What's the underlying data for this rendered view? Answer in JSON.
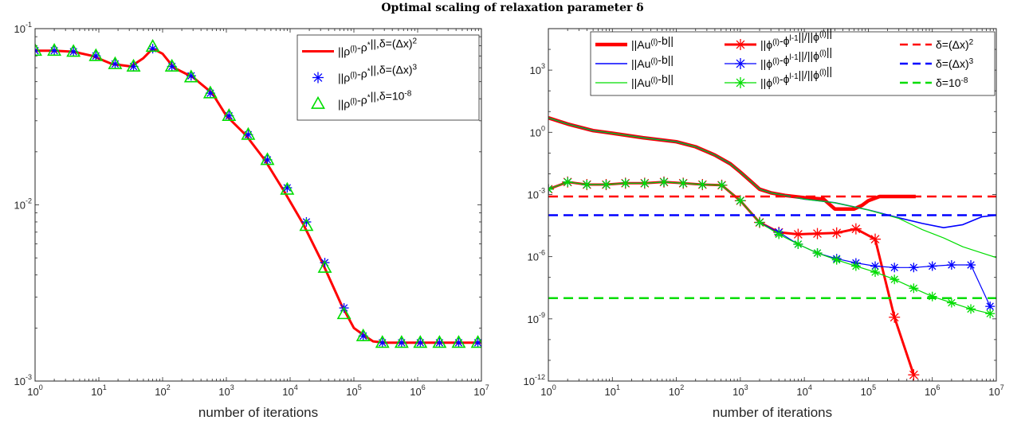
{
  "figure": {
    "title": "Optimal scaling of relaxation parameter δ"
  },
  "colors": {
    "red": "#ff0000",
    "blue": "#0000ff",
    "green": "#00dd00",
    "axis": "#262626"
  },
  "chart_data": [
    {
      "type": "line",
      "xscale": "log",
      "yscale": "log",
      "xlim": [
        1,
        10000000
      ],
      "ylim": [
        0.001,
        0.1
      ],
      "xlabel": "number of iterations",
      "ylabel": "",
      "xticks": [
        {
          "base": "10",
          "exp": "0"
        },
        {
          "base": "10",
          "exp": "1"
        },
        {
          "base": "10",
          "exp": "2"
        },
        {
          "base": "10",
          "exp": "3"
        },
        {
          "base": "10",
          "exp": "4"
        },
        {
          "base": "10",
          "exp": "5"
        },
        {
          "base": "10",
          "exp": "6"
        },
        {
          "base": "10",
          "exp": "7"
        }
      ],
      "yticks": [
        {
          "base": "10",
          "exp": "-3"
        },
        {
          "base": "10",
          "exp": "-2"
        },
        {
          "base": "10",
          "exp": "-1"
        }
      ],
      "legend_position": "top-right",
      "series": [
        {
          "legend_main": "||ρ",
          "legend_sup1": "(l)",
          "legend_mid": "-ρ",
          "legend_sup2": "*",
          "legend_tail": "||,δ=(Δx)",
          "legend_sup3": "2",
          "color": "red",
          "marker": "none",
          "line": "solid",
          "x": [
            1,
            2,
            4,
            8,
            16,
            32,
            50,
            70,
            100,
            150,
            300,
            600,
            1000,
            2000,
            4000,
            8000,
            16000,
            32000,
            64000,
            100000,
            150000,
            200000,
            300000,
            1000000,
            10000000
          ],
          "y": [
            0.075,
            0.075,
            0.074,
            0.07,
            0.063,
            0.061,
            0.068,
            0.077,
            0.072,
            0.06,
            0.053,
            0.043,
            0.032,
            0.025,
            0.018,
            0.012,
            0.0078,
            0.0047,
            0.0027,
            0.002,
            0.0018,
            0.00168,
            0.00165,
            0.00165,
            0.00165
          ]
        },
        {
          "legend_main": "||ρ",
          "legend_sup1": "(l)",
          "legend_mid": "-ρ",
          "legend_sup2": "*",
          "legend_tail": "||,δ=(Δx)",
          "legend_sup3": "3",
          "color": "blue",
          "marker": "asterisk",
          "line": "none",
          "x": [
            1,
            2,
            4,
            9,
            18,
            35,
            70,
            140,
            280,
            560,
            1100,
            2200,
            4400,
            9000,
            18000,
            35000,
            70000,
            140000,
            280000,
            560000,
            1100000,
            2200000,
            4400000,
            8800000
          ],
          "y": [
            0.075,
            0.075,
            0.074,
            0.07,
            0.063,
            0.061,
            0.077,
            0.061,
            0.054,
            0.043,
            0.032,
            0.025,
            0.018,
            0.0125,
            0.008,
            0.0047,
            0.0026,
            0.0018,
            0.00165,
            0.00165,
            0.00165,
            0.00165,
            0.00165,
            0.00165
          ]
        },
        {
          "legend_main": "||ρ",
          "legend_sup1": "(l)",
          "legend_mid": "-ρ",
          "legend_sup2": "*",
          "legend_tail": "||,δ=10",
          "legend_sup3": "-8",
          "color": "green",
          "marker": "triangle",
          "line": "none",
          "x": [
            1,
            2,
            4,
            9,
            18,
            35,
            70,
            140,
            280,
            560,
            1100,
            2200,
            4400,
            9000,
            18000,
            35000,
            70000,
            140000,
            280000,
            560000,
            1100000,
            2200000,
            4400000,
            8800000
          ],
          "y": [
            0.075,
            0.075,
            0.074,
            0.07,
            0.063,
            0.061,
            0.079,
            0.061,
            0.053,
            0.043,
            0.032,
            0.025,
            0.018,
            0.0122,
            0.0076,
            0.0044,
            0.0024,
            0.0018,
            0.00165,
            0.00165,
            0.00165,
            0.00165,
            0.00165,
            0.00165
          ]
        }
      ]
    },
    {
      "type": "line",
      "xscale": "log",
      "yscale": "log",
      "xlim": [
        1,
        10000000
      ],
      "ylim": [
        1e-12,
        100000
      ],
      "xlabel": "number of iterations",
      "ylabel": "",
      "xticks": [
        {
          "base": "10",
          "exp": "0"
        },
        {
          "base": "10",
          "exp": "1"
        },
        {
          "base": "10",
          "exp": "2"
        },
        {
          "base": "10",
          "exp": "3"
        },
        {
          "base": "10",
          "exp": "4"
        },
        {
          "base": "10",
          "exp": "5"
        },
        {
          "base": "10",
          "exp": "6"
        },
        {
          "base": "10",
          "exp": "7"
        }
      ],
      "yticks": [
        {
          "base": "10",
          "exp": "-12"
        },
        {
          "base": "10",
          "exp": "-9"
        },
        {
          "base": "10",
          "exp": "-6"
        },
        {
          "base": "10",
          "exp": "-3"
        },
        {
          "base": "10",
          "exp": "0"
        },
        {
          "base": "10",
          "exp": "3"
        }
      ],
      "legend_position": "top",
      "series": [
        {
          "legend_main": "||Au",
          "legend_sup1": "(l)",
          "legend_tail": "-b||",
          "color": "red",
          "marker": "none",
          "line": "solid",
          "width": 4.5,
          "x": [
            1,
            2,
            5,
            10,
            30,
            100,
            200,
            400,
            700,
            1000,
            1500,
            2000,
            3000,
            5000,
            10000,
            20000,
            30000,
            60000,
            80000,
            100000,
            150000,
            300000,
            550000
          ],
          "y": [
            5,
            2.5,
            1.2,
            0.9,
            0.55,
            0.35,
            0.2,
            0.08,
            0.03,
            0.012,
            0.004,
            0.0018,
            0.0012,
            0.0009,
            0.0007,
            0.0006,
            0.0002,
            0.0002,
            0.0003,
            0.0005,
            0.0008,
            0.0008,
            0.0008
          ]
        },
        {
          "legend_main": "||Au",
          "legend_sup1": "(l)",
          "legend_tail": "-b||",
          "color": "blue",
          "marker": "none",
          "line": "solid",
          "width": 1.6,
          "x": [
            1,
            2,
            5,
            10,
            30,
            100,
            200,
            400,
            700,
            1000,
            1500,
            2000,
            3000,
            5000,
            10000,
            30000,
            100000,
            300000,
            700000,
            1500000,
            3000000,
            6000000,
            10000000
          ],
          "y": [
            5,
            2.5,
            1.2,
            0.9,
            0.55,
            0.35,
            0.2,
            0.08,
            0.03,
            0.012,
            0.004,
            0.0018,
            0.0012,
            0.0009,
            0.0006,
            0.0004,
            0.00018,
            7.5e-05,
            4e-05,
            2.5e-05,
            3.5e-05,
            8.5e-05,
            0.0001
          ]
        },
        {
          "legend_main": "||Au",
          "legend_sup1": "(l)",
          "legend_tail": "-b||",
          "color": "green",
          "marker": "none",
          "line": "solid",
          "width": 1.2,
          "x": [
            1,
            2,
            5,
            10,
            30,
            100,
            200,
            400,
            700,
            1000,
            1500,
            2000,
            3000,
            5000,
            10000,
            30000,
            100000,
            300000,
            700000,
            1500000,
            3000000,
            6000000,
            10000000
          ],
          "y": [
            5,
            2.5,
            1.2,
            0.9,
            0.55,
            0.35,
            0.2,
            0.08,
            0.03,
            0.012,
            0.004,
            0.0018,
            0.0012,
            0.0009,
            0.0006,
            0.0004,
            0.00018,
            7e-05,
            2e-05,
            8e-06,
            3e-06,
            1.5e-06,
            9e-07
          ]
        },
        {
          "legend_main": "||ϕ",
          "legend_sup1": "(l)",
          "legend_mid": "-ϕ",
          "legend_sup2": "l-1",
          "legend_tail": "||/||ϕ",
          "legend_sup3": "(l)",
          "legend_end": "||",
          "color": "red",
          "marker": "asterisk",
          "line": "solid",
          "width": 3,
          "x": [
            1,
            2,
            4,
            8,
            16,
            32,
            64,
            128,
            256,
            512,
            1000,
            2000,
            4000,
            8000,
            16000,
            32000,
            64000,
            128000,
            256000,
            512000
          ],
          "y": [
            0.0018,
            0.004,
            0.003,
            0.003,
            0.0035,
            0.0035,
            0.004,
            0.0035,
            0.003,
            0.0028,
            0.0005,
            4.5e-05,
            1.5e-05,
            1.2e-05,
            1.3e-05,
            1.4e-05,
            2.2e-05,
            7e-06,
            1.2e-09,
            2e-12
          ]
        },
        {
          "legend_main": "||ϕ",
          "legend_sup1": "(l)",
          "legend_mid": "-ϕ",
          "legend_sup2": "l-1",
          "legend_tail": "||/||ϕ",
          "legend_sup3": "(l)",
          "legend_end": "||",
          "color": "blue",
          "marker": "asterisk",
          "line": "solid",
          "width": 1.2,
          "x": [
            1,
            2,
            4,
            8,
            16,
            32,
            64,
            128,
            256,
            512,
            1000,
            2000,
            4000,
            8000,
            16000,
            32000,
            64000,
            128000,
            256000,
            512000,
            1000000,
            2000000,
            4000000,
            8000000
          ],
          "y": [
            0.0018,
            0.004,
            0.003,
            0.003,
            0.0035,
            0.0035,
            0.004,
            0.0035,
            0.003,
            0.0028,
            0.0005,
            4.5e-05,
            1.5e-05,
            4e-06,
            1.5e-06,
            8e-07,
            5e-07,
            3.5e-07,
            3e-07,
            3e-07,
            3.5e-07,
            4e-07,
            4e-07,
            4e-09
          ]
        },
        {
          "legend_main": "||ϕ",
          "legend_sup1": "(l)",
          "legend_mid": "-ϕ",
          "legend_sup2": "l-1",
          "legend_tail": "||/||ϕ",
          "legend_sup3": "(l)",
          "legend_end": "||",
          "color": "green",
          "marker": "asterisk",
          "line": "solid",
          "width": 1.2,
          "x": [
            1,
            2,
            4,
            8,
            16,
            32,
            64,
            128,
            256,
            512,
            1000,
            2000,
            4000,
            8000,
            16000,
            32000,
            64000,
            128000,
            256000,
            512000,
            1000000,
            2000000,
            4000000,
            8000000
          ],
          "y": [
            0.0018,
            0.004,
            0.003,
            0.003,
            0.0035,
            0.0035,
            0.004,
            0.0035,
            0.003,
            0.0028,
            0.0005,
            4.5e-05,
            1.2e-05,
            4e-06,
            1.5e-06,
            7e-07,
            3.5e-07,
            1.8e-07,
            8e-08,
            3e-08,
            1.2e-08,
            6e-09,
            3e-09,
            1.8e-09
          ]
        },
        {
          "legend_main": "δ=(Δx)",
          "legend_sup1": "2",
          "color": "red",
          "marker": "none",
          "line": "dashed",
          "width": 2.5,
          "x": [
            1,
            10000000
          ],
          "y": [
            0.0008,
            0.0008
          ]
        },
        {
          "legend_main": "δ=(Δx)",
          "legend_sup1": "3",
          "color": "blue",
          "marker": "none",
          "line": "dashed",
          "width": 2.5,
          "x": [
            1,
            10000000
          ],
          "y": [
            0.0001,
            0.0001
          ]
        },
        {
          "legend_main": "δ=10",
          "legend_sup1": "-8",
          "color": "green",
          "marker": "none",
          "line": "dashed",
          "width": 2.5,
          "x": [
            1,
            10000000
          ],
          "y": [
            1e-08,
            1e-08
          ]
        }
      ]
    }
  ]
}
